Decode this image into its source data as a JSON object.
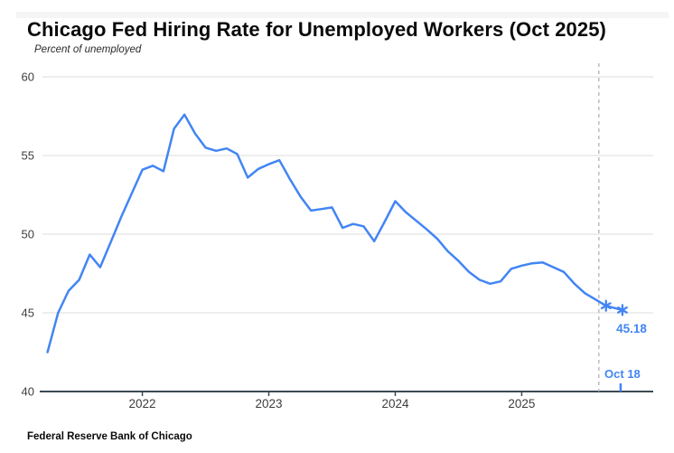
{
  "header": {
    "title": "Chicago Fed Hiring Rate for Unemployed Workers (Oct 2025)",
    "subtitle": "Percent of unemployed"
  },
  "footer": {
    "source": "Federal Reserve Bank of Chicago"
  },
  "colors": {
    "line": "#4285f4",
    "annotation": "#4285f4",
    "grid": "#e3e3e3",
    "axis": "#3a4a55",
    "divider": "#b3b3b3",
    "tick_label": "#3d3d3d"
  },
  "chart_data": {
    "type": "line",
    "title": "Chicago Fed Hiring Rate for Unemployed Workers (Oct 2025)",
    "ylabel": "Percent of unemployed",
    "xlabel": "",
    "y_axis": {
      "ticks": [
        40,
        45,
        50,
        55,
        60
      ],
      "range": [
        40,
        60
      ],
      "grid": true
    },
    "x_axis": {
      "ticks": [
        2022,
        2023,
        2024,
        2025
      ],
      "range_years": [
        2021.21,
        2026.04
      ]
    },
    "series": [
      {
        "name": "Hiring rate for unemployed workers",
        "color": "#4285f4",
        "points": [
          [
            "2021-04",
            42.5
          ],
          [
            "2021-05",
            45.0
          ],
          [
            "2021-06",
            46.4
          ],
          [
            "2021-07",
            47.1
          ],
          [
            "2021-08",
            48.7
          ],
          [
            "2021-09",
            47.9
          ],
          [
            "2021-10",
            49.5
          ],
          [
            "2021-11",
            51.1
          ],
          [
            "2021-12",
            52.6
          ],
          [
            "2022-01",
            54.1
          ],
          [
            "2022-02",
            54.35
          ],
          [
            "2022-03",
            54.0
          ],
          [
            "2022-04",
            56.7
          ],
          [
            "2022-05",
            57.6
          ],
          [
            "2022-06",
            56.4
          ],
          [
            "2022-07",
            55.5
          ],
          [
            "2022-08",
            55.3
          ],
          [
            "2022-09",
            55.45
          ],
          [
            "2022-10",
            55.1
          ],
          [
            "2022-11",
            53.6
          ],
          [
            "2022-12",
            54.15
          ],
          [
            "2023-01",
            54.45
          ],
          [
            "2023-02",
            54.7
          ],
          [
            "2023-03",
            53.5
          ],
          [
            "2023-04",
            52.4
          ],
          [
            "2023-05",
            51.5
          ],
          [
            "2023-06",
            51.6
          ],
          [
            "2023-07",
            51.7
          ],
          [
            "2023-08",
            50.4
          ],
          [
            "2023-09",
            50.65
          ],
          [
            "2023-10",
            50.5
          ],
          [
            "2023-11",
            49.55
          ],
          [
            "2023-12",
            50.8
          ],
          [
            "2024-01",
            52.1
          ],
          [
            "2024-02",
            51.4
          ],
          [
            "2024-03",
            50.85
          ],
          [
            "2024-04",
            50.3
          ],
          [
            "2024-05",
            49.7
          ],
          [
            "2024-06",
            48.9
          ],
          [
            "2024-07",
            48.3
          ],
          [
            "2024-08",
            47.6
          ],
          [
            "2024-09",
            47.1
          ],
          [
            "2024-10",
            46.85
          ],
          [
            "2024-11",
            47.0
          ],
          [
            "2024-12",
            47.8
          ],
          [
            "2025-01",
            48.0
          ],
          [
            "2025-02",
            48.15
          ],
          [
            "2025-03",
            48.2
          ],
          [
            "2025-04",
            47.9
          ],
          [
            "2025-05",
            47.6
          ],
          [
            "2025-06",
            46.85
          ],
          [
            "2025-07",
            46.25
          ],
          [
            "2025-08",
            45.85
          ]
        ]
      }
    ],
    "estimated_points": [
      [
        "2025-09",
        45.45
      ],
      [
        "2025-10-18",
        45.18
      ]
    ],
    "divider_x_year": 2025.61,
    "annotations": {
      "value_label": "45.18",
      "date_label": "Oct 18"
    }
  }
}
